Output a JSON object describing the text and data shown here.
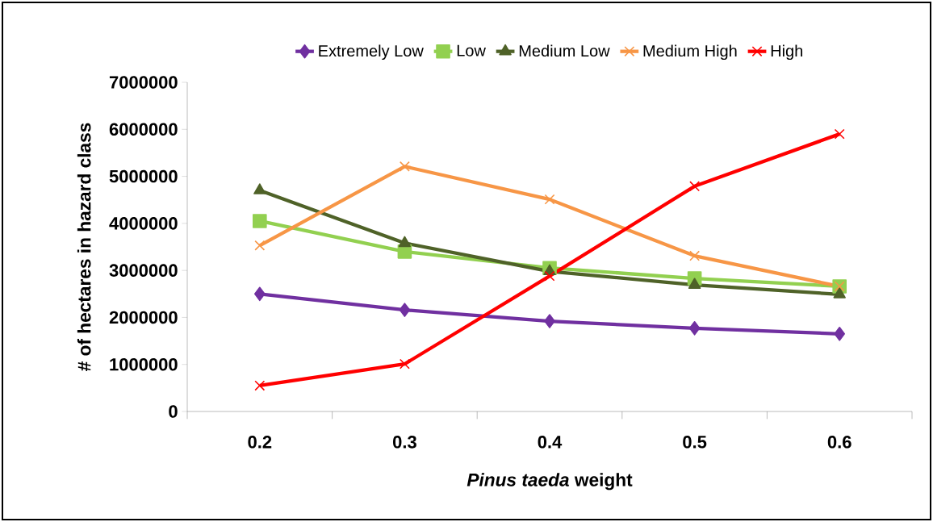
{
  "chart_data": {
    "type": "line",
    "xlabel": "*Pinus taeda* weight",
    "ylabel": "# of hectares in  hazard class",
    "categories": [
      "0.2",
      "0.3",
      "0.4",
      "0.5",
      "0.6"
    ],
    "series": [
      {
        "name": "Extremely Low",
        "color": "#7030a0",
        "marker": "diamond",
        "values": [
          2500000,
          2160000,
          1920000,
          1770000,
          1650000
        ]
      },
      {
        "name": "Low",
        "color": "#92d050",
        "marker": "square",
        "values": [
          4050000,
          3400000,
          3050000,
          2830000,
          2660000
        ]
      },
      {
        "name": "Medium Low",
        "color": "#4f6228",
        "marker": "triangle",
        "values": [
          4700000,
          3580000,
          2980000,
          2690000,
          2490000
        ]
      },
      {
        "name": "Medium High",
        "color": "#f79646",
        "marker": "cross",
        "values": [
          3530000,
          5210000,
          4510000,
          3310000,
          2660000
        ]
      },
      {
        "name": "High",
        "color": "#ff0000",
        "marker": "cross",
        "values": [
          550000,
          1010000,
          2880000,
          4790000,
          5900000
        ]
      }
    ],
    "ylim": [
      0,
      7000000
    ],
    "yticks": [
      0,
      1000000,
      2000000,
      3000000,
      4000000,
      5000000,
      6000000,
      7000000
    ],
    "legend": "top",
    "grid": false,
    "line_style": "solid"
  }
}
